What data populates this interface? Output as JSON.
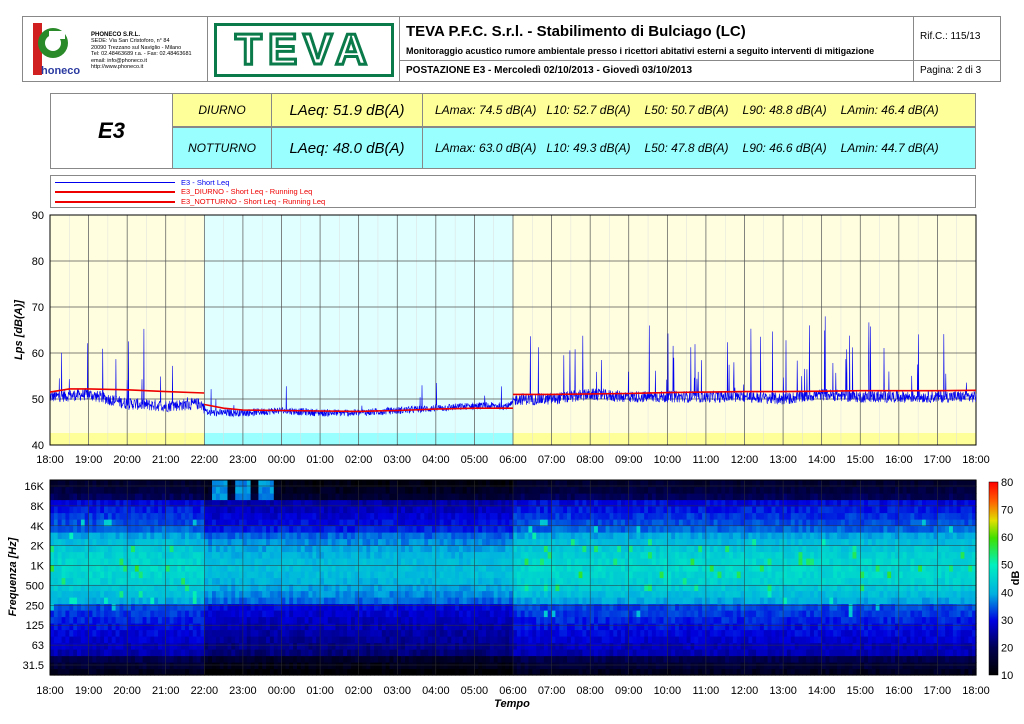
{
  "header": {
    "company": {
      "name": "PHONECO S.R.L.",
      "lines": [
        "SEDE: Via San Cristoforo, n° 84",
        "20090 Trezzano sul Naviglio - Milano",
        "Tel: 02.48463689 r.a. - Fax: 02.48463681",
        "email: info@phoneco.it",
        "http://www.phoneco.it"
      ],
      "logo_text": "honeco"
    },
    "brand_logo": "TEVA",
    "title": "TEVA P.F.C. S.r.l. - Stabilimento di Bulciago (LC)",
    "subtitle": "Monitoraggio acustico rumore ambientale presso i ricettori abitativi esterni a seguito interventi di mitigazione",
    "station": "POSTAZIONE E3 - Mercoledì 02/10/2013 - Giovedì 03/10/2013",
    "ref": "Rif.C.: 115/13",
    "page": "Pagina: 2 di 3"
  },
  "summary": {
    "station_id": "E3",
    "rows": [
      {
        "label": "DIURNO",
        "laeq": "LAeq: 51.9 dB(A)",
        "lamax": "LAmax: 74.5 dB(A)",
        "l10": "L10: 52.7 dB(A)",
        "l50": "L50: 50.7 dB(A)",
        "l90": "L90: 48.8 dB(A)",
        "lamin": "LAmin: 46.4 dB(A)",
        "color": "#FFFF99"
      },
      {
        "label": "NOTTURNO",
        "laeq": "LAeq: 48.0 dB(A)",
        "lamax": "LAmax: 63.0 dB(A)",
        "l10": "L10: 49.3 dB(A)",
        "l50": "L50: 47.8 dB(A)",
        "l90": "L90: 46.6 dB(A)",
        "lamin": "LAmin: 44.7 dB(A)",
        "color": "#99FFFF"
      }
    ]
  },
  "chart_data": [
    {
      "type": "line",
      "ylabel": "Lps [dB(A)]",
      "ylim": [
        40,
        90
      ],
      "yticks": [
        "40",
        "50",
        "60",
        "70",
        "80",
        "90"
      ],
      "xticks": [
        "18:00",
        "19:00",
        "20:00",
        "21:00",
        "22:00",
        "23:00",
        "00:00",
        "01:00",
        "02:00",
        "03:00",
        "04:00",
        "05:00",
        "06:00",
        "07:00",
        "08:00",
        "09:00",
        "10:00",
        "11:00",
        "12:00",
        "13:00",
        "14:00",
        "15:00",
        "16:00",
        "17:00",
        "18:00"
      ],
      "grid": true,
      "legend": "top",
      "series": [
        {
          "name": "E3 - Short Leq",
          "color": "#0000EE",
          "x": [
            "18:00",
            "19:00",
            "20:00",
            "21:00",
            "21:55",
            "22:05",
            "23:00",
            "00:00",
            "01:00",
            "02:00",
            "03:00",
            "04:00",
            "05:00",
            "05:55",
            "06:05",
            "07:00",
            "08:00",
            "09:00",
            "10:00",
            "11:00",
            "12:00",
            "13:00",
            "14:00",
            "15:00",
            "16:00",
            "17:00",
            "18:00"
          ],
          "values": [
            50.5,
            51,
            49,
            48.5,
            49,
            47,
            47,
            47.5,
            47,
            47,
            47.5,
            48,
            48.5,
            48.5,
            50,
            50,
            51,
            50.5,
            50.5,
            50.5,
            50.5,
            50,
            51,
            50.5,
            50.5,
            50.5,
            50.5
          ]
        },
        {
          "name": "E3_DIURNO - Short Leq - Running Leq",
          "color": "#EE0000",
          "x": [
            "18:00",
            "18:30",
            "19:00",
            "20:00",
            "21:00",
            "22:00"
          ],
          "values": [
            51.5,
            52.2,
            52.2,
            52,
            51.6,
            51.3
          ]
        },
        {
          "name": "E3_NOTTURNO - Short Leq - Running Leq",
          "color": "#EE0000",
          "x": [
            "22:00",
            "22:30",
            "23:00",
            "00:00",
            "01:00",
            "02:00",
            "03:00",
            "04:00",
            "05:00",
            "06:00"
          ],
          "values": [
            48.8,
            48,
            47.6,
            47.5,
            47.4,
            47.3,
            47.5,
            47.8,
            48.0,
            48.0
          ]
        },
        {
          "name": "E3_DIURNO - Short Leq - Running Leq",
          "color": "#EE0000",
          "x": [
            "06:00",
            "07:00",
            "08:00",
            "09:00",
            "10:00",
            "11:00",
            "12:00",
            "13:00",
            "14:00",
            "15:00",
            "16:00",
            "17:00",
            "18:00"
          ],
          "values": [
            51.0,
            51.0,
            51.1,
            51.2,
            51.4,
            51.5,
            51.6,
            51.6,
            51.7,
            51.8,
            51.8,
            51.8,
            51.9
          ]
        }
      ],
      "periods": [
        {
          "from": "18:00",
          "to": "22:00",
          "color": "#FFFFE0"
        },
        {
          "from": "22:00",
          "to": "06:00",
          "color": "#E0FFFF"
        },
        {
          "from": "06:00",
          "to": "18:00",
          "color": "#FFFFE0"
        }
      ]
    },
    {
      "type": "heatmap",
      "ylabel": "Frequenza [Hz]",
      "xlabel": "Tempo",
      "yticks": [
        "31.5",
        "63",
        "125",
        "250",
        "500",
        "1K",
        "2K",
        "4K",
        "8K",
        "16K"
      ],
      "xticks": [
        "18:00",
        "19:00",
        "20:00",
        "21:00",
        "22:00",
        "23:00",
        "00:00",
        "01:00",
        "02:00",
        "03:00",
        "04:00",
        "05:00",
        "06:00",
        "07:00",
        "08:00",
        "09:00",
        "10:00",
        "11:00",
        "12:00",
        "13:00",
        "14:00",
        "15:00",
        "16:00",
        "17:00",
        "18:00"
      ],
      "colorbar": {
        "label": "dB",
        "ticks": [
          "10",
          "20",
          "30",
          "40",
          "50",
          "60",
          "70",
          "80"
        ],
        "range": [
          10,
          80
        ]
      }
    }
  ]
}
